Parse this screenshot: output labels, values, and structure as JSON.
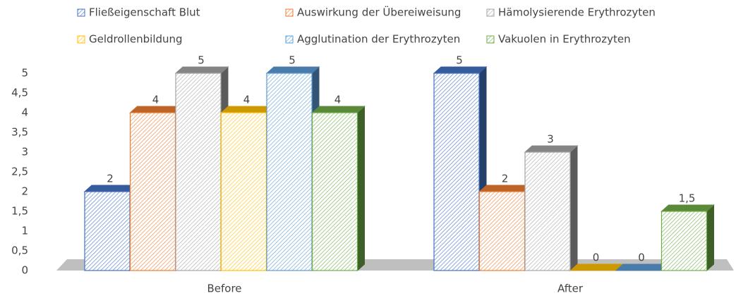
{
  "chart_data": {
    "type": "bar3d",
    "categories": [
      "Before",
      "After"
    ],
    "series": [
      {
        "name": "Fließeigenschaft Blut",
        "color": "#4472c4",
        "values": [
          2,
          5
        ]
      },
      {
        "name": "Auswirkung der Übereiweisung",
        "color": "#ed7d31",
        "values": [
          4,
          2
        ]
      },
      {
        "name": "Hämolysierende Erythrozyten",
        "color": "#a5a5a5",
        "values": [
          5,
          3
        ]
      },
      {
        "name": "Geldrollenbildung",
        "color": "#ffc000",
        "values": [
          4,
          0
        ]
      },
      {
        "name": "Agglutination der Erythrozyten",
        "color": "#5b9bd5",
        "values": [
          5,
          0
        ]
      },
      {
        "name": "Vakuolen in Erythrozyten",
        "color": "#70ad47",
        "values": [
          4,
          1.5
        ],
        "value_labels": [
          "4",
          "1,5"
        ]
      }
    ],
    "ylim": [
      0,
      5
    ],
    "yticks": [
      0,
      {
        "value": 0.5,
        "label": "0,5"
      },
      1,
      {
        "value": 1.5,
        "label": "1,5"
      },
      2,
      {
        "value": 2.5,
        "label": "2,5"
      },
      3,
      {
        "value": 3.5,
        "label": "3,5"
      },
      4,
      {
        "value": 4.5,
        "label": "4,5"
      },
      5
    ],
    "legend": "top"
  }
}
